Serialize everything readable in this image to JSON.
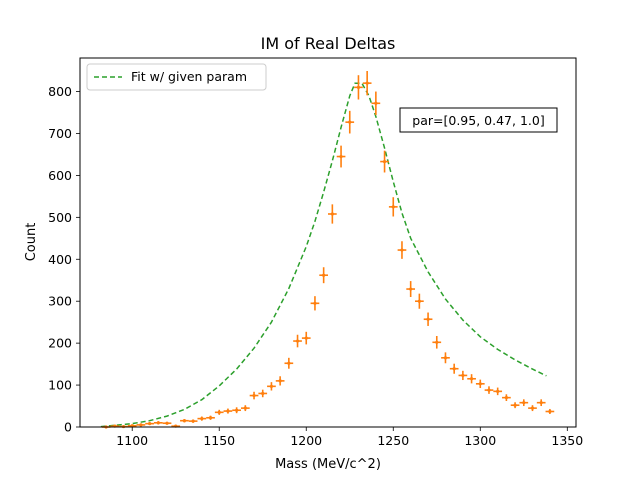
{
  "chart_data": {
    "type": "scatter",
    "title": "IM of Real Deltas",
    "xlabel": "Mass (MeV/c^2)",
    "ylabel": "Count",
    "xlim": [
      1070,
      1355
    ],
    "ylim": [
      0,
      880
    ],
    "xticks": [
      1100,
      1150,
      1200,
      1250,
      1300,
      1350
    ],
    "yticks": [
      0,
      100,
      200,
      300,
      400,
      500,
      600,
      700,
      800
    ],
    "legend": {
      "placement": "top-left",
      "entries": [
        "Fit w/ given param"
      ]
    },
    "annotation": "par=[0.95, 0.47, 1.0]",
    "grid": false,
    "colors": {
      "fit": "#2ca02c",
      "data": "#ff7f0e"
    },
    "fit_curve": {
      "name": "Fit w/ given param",
      "x": [
        1082,
        1090,
        1100,
        1110,
        1120,
        1130,
        1140,
        1150,
        1160,
        1170,
        1180,
        1190,
        1200,
        1205,
        1210,
        1215,
        1220,
        1225,
        1228,
        1232,
        1236,
        1240,
        1245,
        1250,
        1255,
        1260,
        1270,
        1280,
        1290,
        1300,
        1310,
        1320,
        1330,
        1338
      ],
      "y": [
        1,
        4,
        8,
        15,
        26,
        42,
        65,
        98,
        138,
        188,
        250,
        330,
        430,
        490,
        560,
        635,
        715,
        790,
        820,
        820,
        790,
        740,
        665,
        585,
        510,
        450,
        370,
        305,
        255,
        215,
        185,
        160,
        138,
        122
      ]
    },
    "data_points": {
      "x": [
        1085,
        1090,
        1095,
        1100,
        1105,
        1110,
        1115,
        1120,
        1125,
        1130,
        1135,
        1140,
        1145,
        1150,
        1155,
        1160,
        1165,
        1170,
        1175,
        1180,
        1185,
        1190,
        1195,
        1200,
        1205,
        1210,
        1215,
        1220,
        1225,
        1230,
        1235,
        1240,
        1245,
        1250,
        1255,
        1260,
        1265,
        1270,
        1275,
        1280,
        1285,
        1290,
        1295,
        1300,
        1305,
        1310,
        1315,
        1320,
        1325,
        1330,
        1335,
        1340
      ],
      "y": [
        0,
        2,
        1,
        3,
        5,
        8,
        10,
        9,
        2,
        15,
        14,
        20,
        22,
        35,
        38,
        40,
        45,
        75,
        80,
        97,
        110,
        152,
        205,
        212,
        295,
        362,
        508,
        645,
        727,
        810,
        820,
        772,
        633,
        525,
        422,
        329,
        300,
        257,
        202,
        165,
        139,
        123,
        115,
        103,
        88,
        85,
        70,
        52,
        58,
        45,
        58,
        37
      ],
      "yerr": [
        1,
        2,
        1,
        2,
        3,
        3,
        4,
        3,
        2,
        4,
        4,
        5,
        5,
        6,
        6,
        7,
        7,
        9,
        9,
        10,
        11,
        13,
        15,
        15,
        17,
        19,
        23,
        26,
        27,
        29,
        29,
        28,
        26,
        23,
        21,
        19,
        18,
        16,
        15,
        13,
        12,
        11,
        11,
        10,
        9,
        9,
        8,
        7,
        8,
        7,
        8,
        6
      ],
      "xerr": 2.5
    }
  }
}
